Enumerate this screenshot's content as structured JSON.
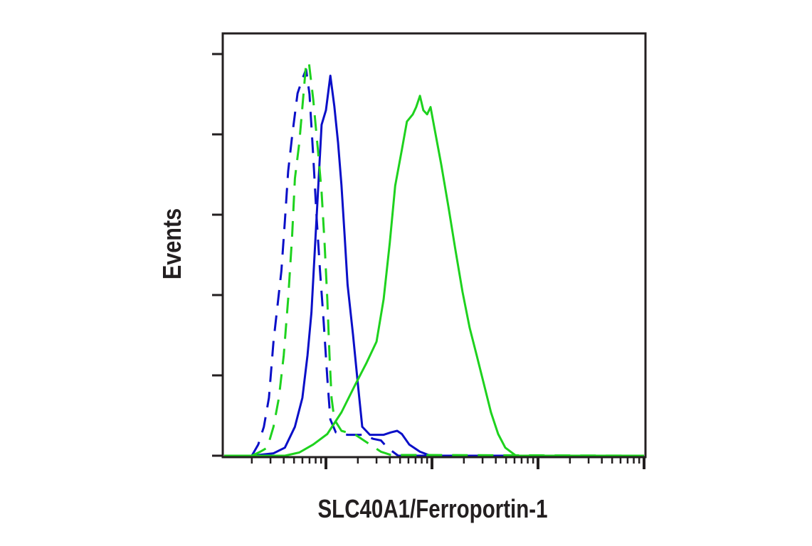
{
  "chart_data": {
    "type": "line",
    "title": "",
    "xlabel": "SLC40A1/Ferroportin-1",
    "ylabel": "Events",
    "xscale": "log",
    "xlim": [
      1,
      10000
    ],
    "ylim": [
      0,
      5.27
    ],
    "x_major_ticks": [
      10,
      100,
      1000,
      10000
    ],
    "y_ticks": [
      0,
      1,
      2,
      3,
      4,
      5
    ],
    "tick_labels_shown": false,
    "grid": false,
    "legend": "none",
    "series": [
      {
        "color": "#0a0fc8",
        "style": "solid",
        "x": [
          1.06,
          2.0,
          3.2,
          4.1,
          5.1,
          6.0,
          6.7,
          7.3,
          8.2,
          9.1,
          10,
          11,
          12,
          13,
          14,
          15,
          16,
          18,
          20,
          22,
          26,
          35,
          41,
          47,
          52,
          61,
          77,
          97,
          10000
        ],
        "y": [
          0,
          0,
          0.03,
          0.1,
          0.36,
          0.72,
          1.25,
          1.78,
          3.02,
          4.12,
          4.3,
          4.73,
          4.35,
          3.9,
          3.37,
          2.75,
          2.13,
          1.51,
          0.89,
          0.36,
          0.26,
          0.26,
          0.29,
          0.31,
          0.27,
          0.14,
          0.05,
          0,
          0
        ]
      },
      {
        "color": "#0a0fc8",
        "style": "dashed",
        "x": [
          2.0,
          2.3,
          2.6,
          2.9,
          3.2,
          3.8,
          4.1,
          4.4,
          4.8,
          5.4,
          6.0,
          6.5,
          7.0,
          7.6,
          8.2,
          8.8,
          9.5,
          10.3,
          11,
          12.4,
          16,
          22,
          28,
          33,
          38,
          48,
          10000
        ],
        "y": [
          0,
          0.14,
          0.36,
          0.72,
          1.42,
          2.3,
          2.92,
          3.54,
          3.98,
          4.51,
          4.69,
          4.81,
          4.5,
          3.72,
          2.92,
          2.3,
          1.68,
          0.97,
          0.45,
          0.29,
          0.26,
          0.26,
          0.21,
          0.19,
          0.1,
          0,
          0
        ]
      },
      {
        "color": "#1ed21e",
        "style": "solid",
        "x": [
          1.06,
          4.1,
          5.6,
          7.6,
          10.3,
          14,
          19,
          24,
          30,
          35,
          40,
          45,
          52,
          58,
          66,
          71,
          77,
          83,
          90,
          97,
          105,
          122,
          143,
          166,
          194,
          227,
          265,
          309,
          360,
          421,
          491,
          619,
          10000
        ],
        "y": [
          0,
          0,
          0.04,
          0.14,
          0.27,
          0.54,
          0.89,
          1.15,
          1.42,
          1.95,
          2.65,
          3.36,
          3.81,
          4.16,
          4.25,
          4.34,
          4.48,
          4.3,
          4.25,
          4.34,
          4.09,
          3.63,
          3.1,
          2.57,
          2.04,
          1.59,
          1.24,
          0.89,
          0.54,
          0.27,
          0.1,
          0,
          0
        ]
      },
      {
        "color": "#1ed21e",
        "style": "dashed",
        "x": [
          2.0,
          2.4,
          2.8,
          3.2,
          3.6,
          4.0,
          4.4,
          4.8,
          5.1,
          5.6,
          6.0,
          6.5,
          6.9,
          7.6,
          8.4,
          9.1,
          9.7,
          10.3,
          10.8,
          11.3,
          12,
          14,
          19,
          26,
          33,
          41,
          10000
        ],
        "y": [
          0,
          0.05,
          0.1,
          0.36,
          0.72,
          1.25,
          1.95,
          2.74,
          3.45,
          3.89,
          4.34,
          4.88,
          4.9,
          4.43,
          3.81,
          3.28,
          2.66,
          1.95,
          1.25,
          0.72,
          0.45,
          0.31,
          0.26,
          0.14,
          0.05,
          0.01,
          0
        ]
      }
    ]
  }
}
